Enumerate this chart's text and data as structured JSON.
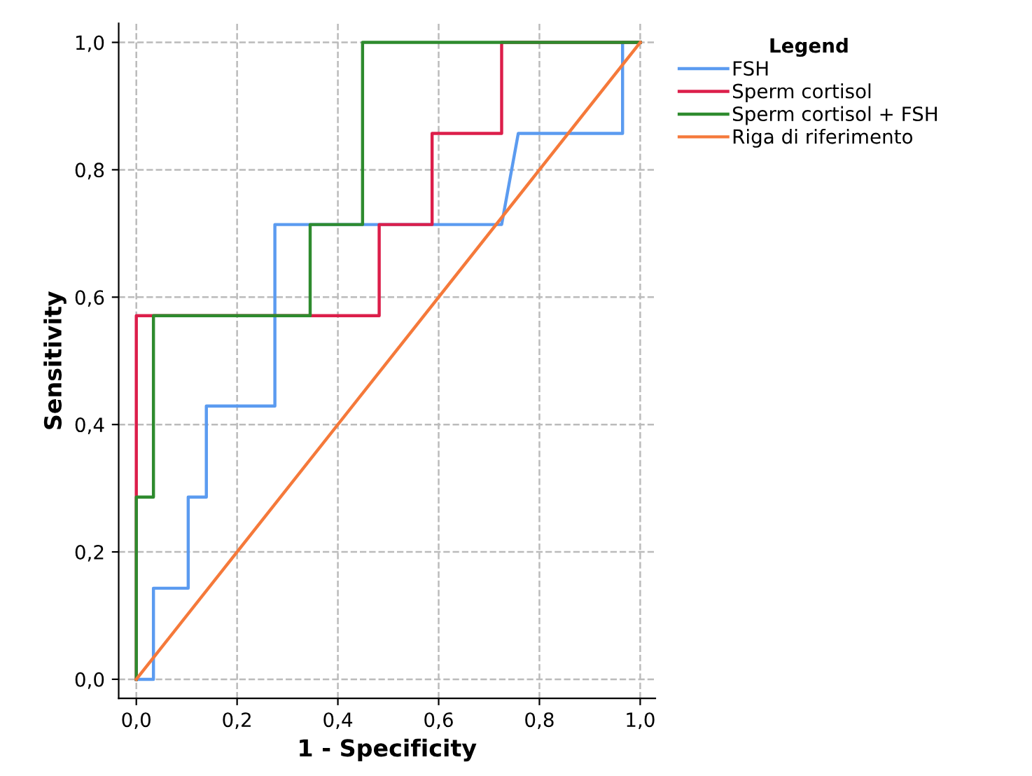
{
  "chart_data": {
    "type": "line",
    "xlabel": "1 - Specificity",
    "ylabel": "Sensitivity",
    "legend_title": "Legend",
    "legend": "right",
    "grid": true,
    "xlim": [
      -0.035,
      1.03
    ],
    "ylim": [
      -0.03,
      1.03
    ],
    "xticks": [
      {
        "value": 0,
        "label": "0,0"
      },
      {
        "value": 0.2,
        "label": "0,2"
      },
      {
        "value": 0.4,
        "label": "0,4"
      },
      {
        "value": 0.6,
        "label": "0,6"
      },
      {
        "value": 0.8,
        "label": "0,8"
      },
      {
        "value": 1,
        "label": "1,0"
      }
    ],
    "yticks": [
      {
        "value": 0,
        "label": "0,0"
      },
      {
        "value": 0.2,
        "label": "0,2"
      },
      {
        "value": 0.4,
        "label": "0,4"
      },
      {
        "value": 0.6,
        "label": "0,6"
      },
      {
        "value": 0.8,
        "label": "0,8"
      },
      {
        "value": 1,
        "label": "1,0"
      }
    ],
    "series": [
      {
        "name": "FSH",
        "color": "#5b9bf0",
        "x": [
          0,
          0.034,
          0.034,
          0.103,
          0.103,
          0.139,
          0.139,
          0.275,
          0.275,
          0.725,
          0.758,
          0.965,
          0.965,
          1
        ],
        "values": [
          0,
          0,
          0.143,
          0.143,
          0.286,
          0.286,
          0.429,
          0.429,
          0.714,
          0.714,
          0.857,
          0.857,
          1,
          1
        ]
      },
      {
        "name": "Sperm cortisol",
        "color": "#dc1e4a",
        "x": [
          0,
          0,
          0.482,
          0.482,
          0.587,
          0.587,
          0.725,
          0.725,
          1
        ],
        "values": [
          0,
          0.571,
          0.571,
          0.714,
          0.714,
          0.857,
          0.857,
          1,
          1
        ]
      },
      {
        "name": "Sperm cortisol + FSH",
        "color": "#2e8b2e",
        "x": [
          0,
          0,
          0.034,
          0.034,
          0.345,
          0.345,
          0.449,
          0.449,
          1
        ],
        "values": [
          0,
          0.286,
          0.286,
          0.571,
          0.571,
          0.714,
          0.714,
          1,
          1
        ]
      },
      {
        "name": "Riga di riferimento",
        "color": "#f5793a",
        "x": [
          0,
          1
        ],
        "values": [
          0,
          1
        ]
      }
    ]
  }
}
